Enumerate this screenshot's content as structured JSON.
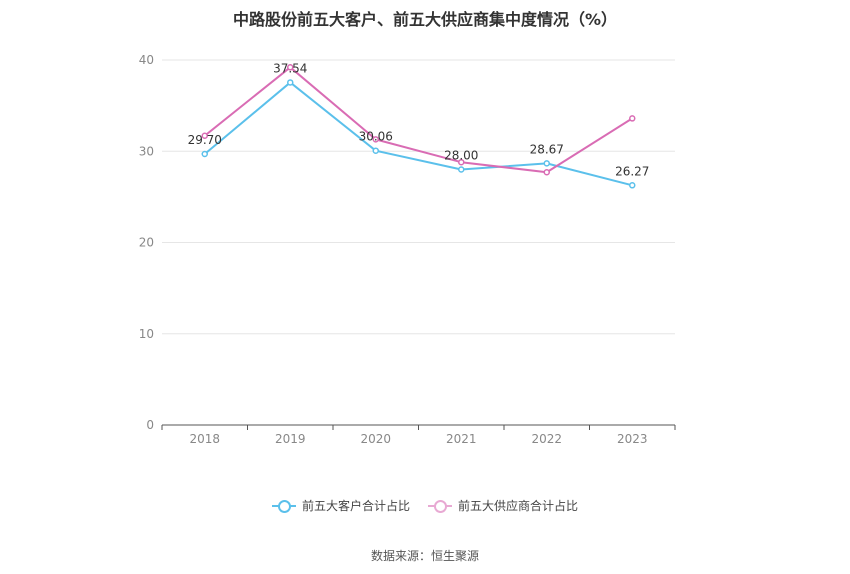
{
  "title": "中路股份前五大客户、前五大供应商集中度情况（%）",
  "source": "数据来源：恒生聚源",
  "chart_data": {
    "type": "line",
    "categories": [
      "2018",
      "2019",
      "2020",
      "2021",
      "2022",
      "2023"
    ],
    "ylim": [
      0,
      40
    ],
    "yticks": [
      0,
      10,
      20,
      30,
      40
    ],
    "grid": true,
    "legend_position": "bottom",
    "series": [
      {
        "name": "前五大客户合计占比",
        "color": "#5bc0eb",
        "values": [
          29.7,
          37.54,
          30.06,
          28.0,
          28.67,
          26.27
        ],
        "labels": [
          "29.70",
          "37.54",
          "30.06",
          "28.00",
          "28.67",
          "26.27"
        ]
      },
      {
        "name": "前五大供应商合计占比",
        "color": "#d96cb4",
        "values": [
          31.7,
          39.2,
          31.3,
          28.8,
          27.7,
          33.6
        ]
      }
    ]
  }
}
